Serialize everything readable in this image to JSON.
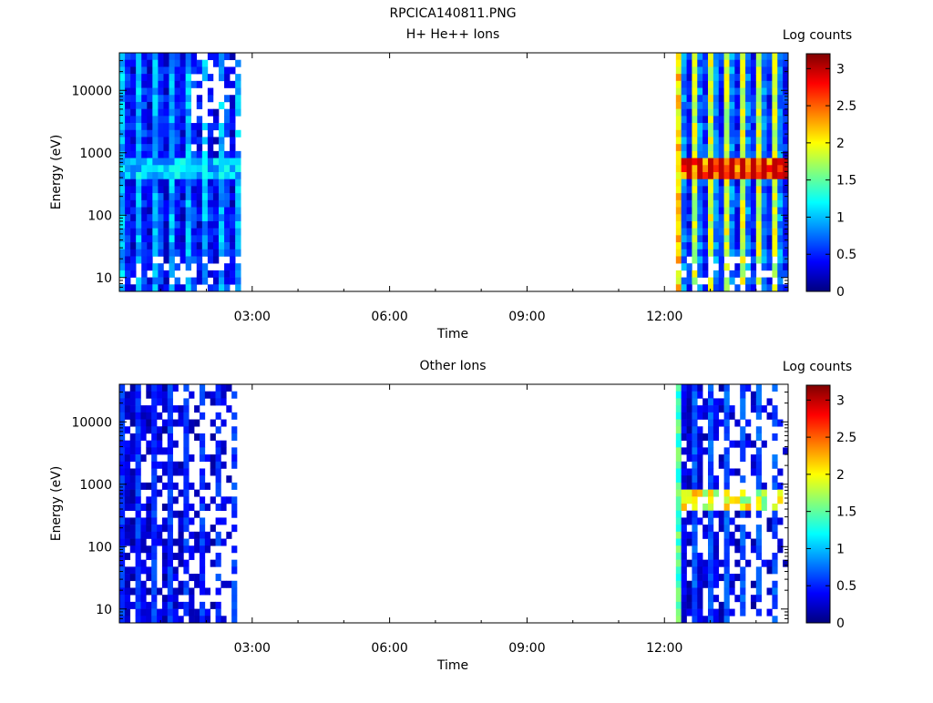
{
  "figure": {
    "title": "RPCICA140811.PNG"
  },
  "colormap": [
    "#00007f",
    "#0000ff",
    "#007fff",
    "#00ffff",
    "#7fff7f",
    "#ffff00",
    "#ff7f00",
    "#ff0000",
    "#7f0000"
  ],
  "chart_data": [
    {
      "type": "heatmap",
      "title": "H+ He++ Ions",
      "xlabel": "Time",
      "ylabel": "Energy (eV)",
      "x_ticks": [
        "03:00",
        "06:00",
        "09:00",
        "12:00"
      ],
      "y_ticks": [
        "10",
        "100",
        "1000",
        "10000"
      ],
      "x_range_hours": [
        0.1,
        14.7
      ],
      "y_range_eV": [
        6,
        40000
      ],
      "y_scale": "log",
      "colorbar": {
        "title": "Log counts",
        "ticks": [
          "0",
          "0.5",
          "1",
          "1.5",
          "2",
          "2.5",
          "3"
        ],
        "range": [
          0,
          3.2
        ]
      },
      "data_blocks": [
        {
          "time_start": "00:06",
          "time_end": "02:45",
          "description_values": {
            "high_energy_log_counts": 0.7,
            "band_500eV_log_counts": 1.2
          }
        },
        {
          "time_start": "12:15",
          "time_end": "14:42",
          "description_values": {
            "band_600eV_log_counts": 3.0,
            "high_energy_log_counts": 1.6
          }
        }
      ]
    },
    {
      "type": "heatmap",
      "title": "Other Ions",
      "xlabel": "Time",
      "ylabel": "Energy (eV)",
      "x_ticks": [
        "03:00",
        "06:00",
        "09:00",
        "12:00"
      ],
      "y_ticks": [
        "10",
        "100",
        "1000",
        "10000"
      ],
      "x_range_hours": [
        0.1,
        14.7
      ],
      "y_range_eV": [
        6,
        40000
      ],
      "y_scale": "log",
      "colorbar": {
        "title": "Log counts",
        "ticks": [
          "0",
          "0.5",
          "1",
          "1.5",
          "2",
          "2.5",
          "3"
        ],
        "range": [
          0,
          3.2
        ]
      },
      "data_blocks": [
        {
          "time_start": "00:06",
          "time_end": "02:40",
          "description_values": {
            "high_energy_log_counts": 0.4
          }
        },
        {
          "time_start": "12:15",
          "time_end": "14:42",
          "description_values": {
            "band_600eV_log_counts": 2.1,
            "high_energy_log_counts": 0.5
          }
        }
      ]
    }
  ]
}
